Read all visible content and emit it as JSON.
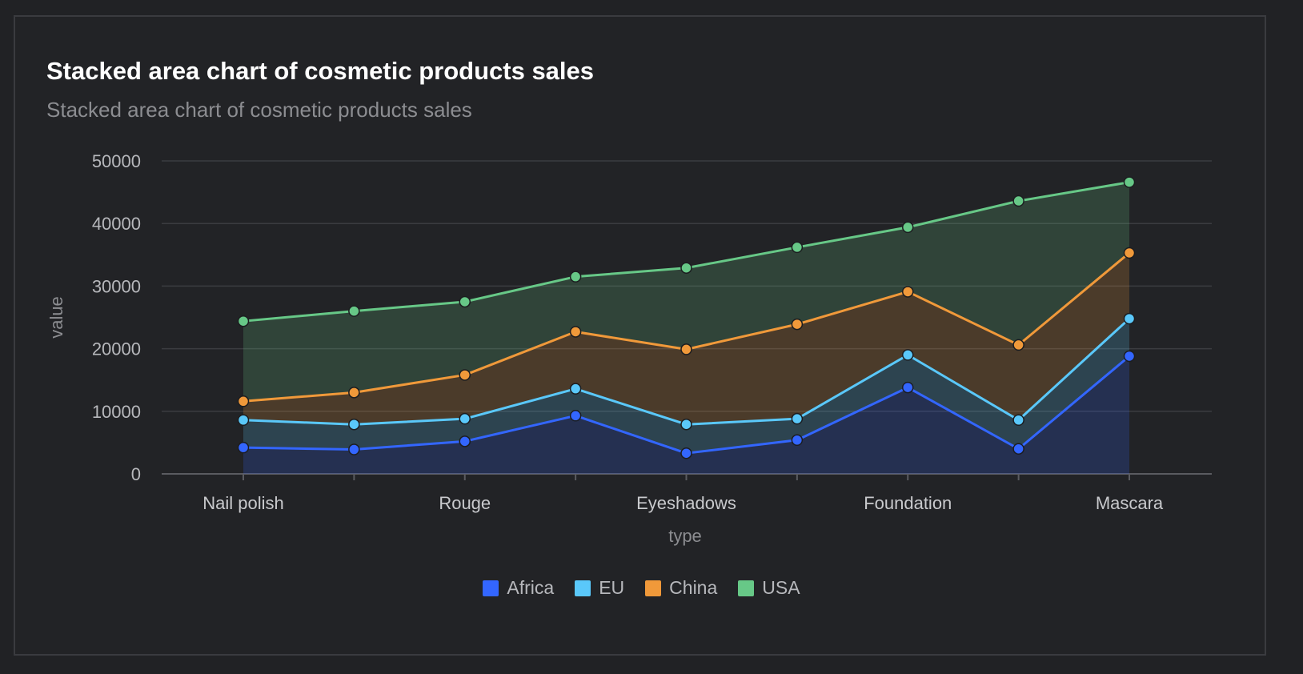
{
  "chart_data": {
    "type": "area",
    "stacked": true,
    "title": "Stacked area chart of cosmetic products sales",
    "subtitle": "Stacked area chart of cosmetic products sales",
    "xlabel": "type",
    "ylabel": "value",
    "ylim": [
      0,
      50000
    ],
    "yticks": [
      "0",
      "10000",
      "20000",
      "30000",
      "40000",
      "50000"
    ],
    "categories": [
      "Nail polish",
      "",
      "Rouge",
      "",
      "Eyeshadows",
      "",
      "Foundation",
      "",
      "Mascara"
    ],
    "series": [
      {
        "name": "Africa",
        "color": "#3366ff",
        "values": [
          4200,
          3900,
          5200,
          9300,
          3300,
          5400,
          13800,
          4000,
          18800
        ]
      },
      {
        "name": "EU",
        "color": "#5ac8fa",
        "values": [
          4400,
          4000,
          3600,
          4300,
          4600,
          3400,
          5200,
          4600,
          6000
        ]
      },
      {
        "name": "China",
        "color": "#f0993a",
        "values": [
          3000,
          5100,
          7000,
          9100,
          12000,
          15100,
          10100,
          12000,
          10500
        ]
      },
      {
        "name": "USA",
        "color": "#67c887",
        "values": [
          12800,
          13000,
          11700,
          8800,
          13000,
          12300,
          10300,
          23000,
          11300
        ]
      }
    ],
    "grid": true,
    "legend": "bottom-center"
  }
}
